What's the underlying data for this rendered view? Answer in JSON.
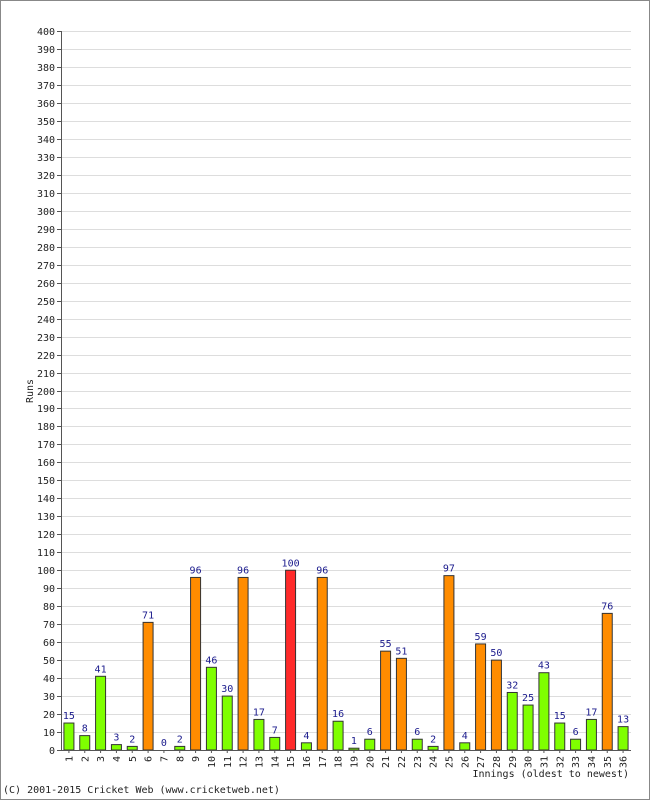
{
  "chart_data": {
    "type": "bar",
    "ylabel": "Runs",
    "xlabel": "Innings (oldest to newest)",
    "ylim": [
      0,
      400
    ],
    "y_tick_step": 10,
    "grid": true,
    "categories": [
      "1",
      "2",
      "3",
      "4",
      "5",
      "6",
      "7",
      "8",
      "9",
      "10",
      "11",
      "12",
      "13",
      "14",
      "15",
      "16",
      "17",
      "18",
      "19",
      "20",
      "21",
      "22",
      "23",
      "24",
      "25",
      "26",
      "27",
      "28",
      "29",
      "30",
      "31",
      "32",
      "33",
      "34",
      "35",
      "36"
    ],
    "values": [
      15,
      8,
      41,
      3,
      2,
      71,
      0,
      2,
      96,
      46,
      30,
      96,
      17,
      7,
      100,
      4,
      96,
      16,
      1,
      6,
      55,
      51,
      6,
      2,
      97,
      4,
      59,
      50,
      32,
      25,
      43,
      15,
      6,
      17,
      76,
      13
    ],
    "colors": {
      "under_50": "#7fff00",
      "50_to_99": "#ff8c00",
      "hundred": "#ff2a2a",
      "bar_border": "#333333",
      "data_label": "#1a1a8c",
      "grid": "#dddddd"
    }
  },
  "footer": {
    "credit": "(C) 2001-2015 Cricket Web (www.cricketweb.net)"
  }
}
